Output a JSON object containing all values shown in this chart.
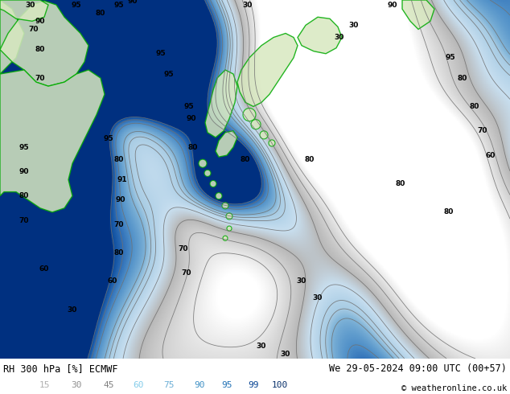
{
  "title_left": "RH 300 hPa [%] ECMWF",
  "title_right": "We 29-05-2024 09:00 UTC (00+57)",
  "copyright": "© weatheronline.co.uk",
  "colorbar_labels": [
    15,
    30,
    45,
    60,
    75,
    90,
    95,
    99,
    100
  ],
  "colorbar_label_colors": [
    "#b0b0b0",
    "#909090",
    "#808080",
    "#87ceeb",
    "#6baed6",
    "#4292c6",
    "#2171b5",
    "#084594",
    "#08306b"
  ],
  "bg_color": "#ffffff",
  "figsize": [
    6.34,
    4.9
  ],
  "dpi": 100,
  "contour_color": "#707070",
  "contour_levels": [
    15,
    30,
    45,
    60,
    70,
    75,
    80,
    90,
    95,
    99
  ],
  "land_fill": "#d8e8c0",
  "land_edge": "#00aa00",
  "rh_colormap": [
    [
      0.0,
      "#ffffff"
    ],
    [
      0.15,
      "#e8e8e8"
    ],
    [
      0.3,
      "#d0d0d0"
    ],
    [
      0.45,
      "#b8b8b8"
    ],
    [
      0.6,
      "#c8dff0"
    ],
    [
      0.75,
      "#a8cce4"
    ],
    [
      0.8,
      "#80b4d8"
    ],
    [
      0.9,
      "#5090c8"
    ],
    [
      0.95,
      "#3070b8"
    ],
    [
      0.99,
      "#1050a0"
    ],
    [
      1.0,
      "#0030800"
    ]
  ],
  "label_positions": [
    [
      50,
      415,
      "90"
    ],
    [
      50,
      380,
      "80"
    ],
    [
      50,
      345,
      "70"
    ],
    [
      30,
      260,
      "95"
    ],
    [
      30,
      230,
      "90"
    ],
    [
      30,
      200,
      "80"
    ],
    [
      30,
      170,
      "70"
    ],
    [
      55,
      110,
      "60"
    ],
    [
      90,
      60,
      "30"
    ],
    [
      135,
      270,
      "95"
    ],
    [
      148,
      245,
      "80"
    ],
    [
      152,
      220,
      "91"
    ],
    [
      150,
      195,
      "90"
    ],
    [
      148,
      165,
      "70"
    ],
    [
      148,
      130,
      "80"
    ],
    [
      140,
      95,
      "60"
    ],
    [
      228,
      135,
      "70"
    ],
    [
      232,
      105,
      "70"
    ],
    [
      200,
      375,
      "95"
    ],
    [
      210,
      350,
      "95"
    ],
    [
      235,
      310,
      "95"
    ],
    [
      238,
      295,
      "90"
    ],
    [
      240,
      260,
      "80"
    ],
    [
      305,
      245,
      "80"
    ],
    [
      385,
      245,
      "80"
    ],
    [
      375,
      95,
      "30"
    ],
    [
      395,
      75,
      "30"
    ],
    [
      498,
      215,
      "80"
    ],
    [
      558,
      180,
      "80"
    ],
    [
      560,
      370,
      "95"
    ],
    [
      575,
      345,
      "80"
    ],
    [
      590,
      310,
      "80"
    ],
    [
      600,
      280,
      "70"
    ],
    [
      610,
      250,
      "60"
    ],
    [
      422,
      395,
      "30"
    ],
    [
      440,
      410,
      "30"
    ],
    [
      325,
      15,
      "30"
    ],
    [
      355,
      5,
      "30"
    ],
    [
      95,
      435,
      "95"
    ],
    [
      148,
      435,
      "95"
    ],
    [
      125,
      425,
      "80"
    ],
    [
      38,
      435,
      "30"
    ],
    [
      42,
      405,
      "70"
    ],
    [
      488,
      435,
      "90"
    ],
    [
      165,
      440,
      "90"
    ],
    [
      308,
      435,
      "30"
    ]
  ]
}
